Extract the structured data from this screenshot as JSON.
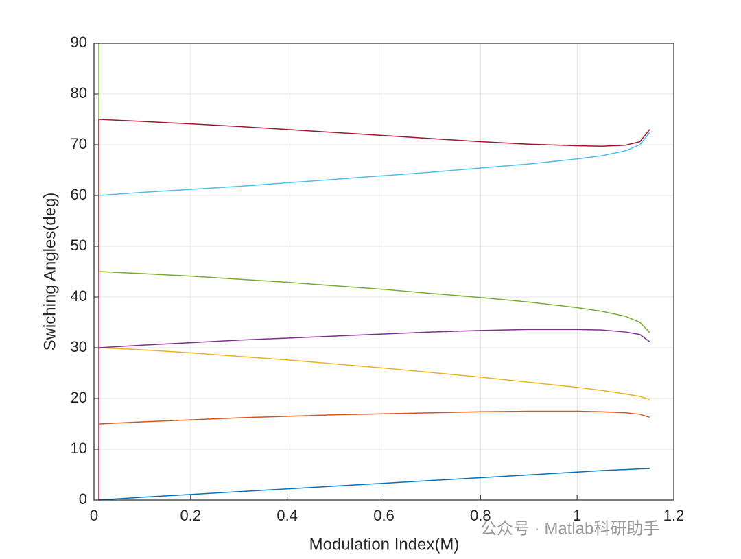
{
  "chart_data": {
    "type": "line",
    "xlabel": "Modulation Index(M)",
    "ylabel": "Swiching Angles(deg)",
    "watermark": "公众号 · Matlab科研助手",
    "xlim": [
      0,
      1.2
    ],
    "ylim": [
      0,
      90
    ],
    "xticks": [
      0,
      0.2,
      0.4,
      0.6,
      0.8,
      1,
      1.2
    ],
    "yticks": [
      0,
      10,
      20,
      30,
      40,
      50,
      60,
      70,
      80,
      90
    ],
    "grid": true,
    "x": [
      0.01,
      0.01,
      0.1,
      0.2,
      0.3,
      0.4,
      0.5,
      0.6,
      0.7,
      0.8,
      0.9,
      1.0,
      1.05,
      1.1,
      1.13,
      1.15
    ],
    "series": [
      {
        "color": "#0072bd",
        "values": [
          0,
          0,
          0.55,
          1.1,
          1.65,
          2.2,
          2.75,
          3.3,
          3.85,
          4.4,
          4.95,
          5.5,
          5.8,
          6.0,
          6.15,
          6.2
        ]
      },
      {
        "color": "#d95319",
        "values": [
          15,
          15,
          15.4,
          15.8,
          16.2,
          16.5,
          16.8,
          17.0,
          17.2,
          17.4,
          17.5,
          17.5,
          17.4,
          17.2,
          16.9,
          16.3
        ]
      },
      {
        "color": "#edb120",
        "values": [
          30,
          30,
          29.6,
          29.0,
          28.3,
          27.6,
          26.8,
          26.0,
          25.1,
          24.2,
          23.2,
          22.2,
          21.6,
          20.9,
          20.4,
          19.8
        ]
      },
      {
        "color": "#7e2f8e",
        "values": [
          30,
          30,
          30.5,
          31.0,
          31.5,
          31.9,
          32.3,
          32.7,
          33.1,
          33.4,
          33.6,
          33.6,
          33.5,
          33.1,
          32.6,
          31.2
        ]
      },
      {
        "color": "#77ac30",
        "values": [
          90,
          45,
          44.6,
          44.1,
          43.5,
          42.9,
          42.2,
          41.5,
          40.7,
          39.9,
          39.0,
          37.9,
          37.2,
          36.2,
          35.0,
          33.0
        ]
      },
      {
        "color": "#4dbeee",
        "values": [
          60,
          60,
          60.6,
          61.2,
          61.8,
          62.5,
          63.2,
          63.9,
          64.6,
          65.4,
          66.2,
          67.2,
          67.8,
          68.8,
          70.0,
          72.4
        ]
      },
      {
        "color": "#a2142f",
        "values": [
          0,
          75,
          74.6,
          74.1,
          73.6,
          73.0,
          72.4,
          71.8,
          71.2,
          70.6,
          70.1,
          69.8,
          69.7,
          69.9,
          70.6,
          73.0
        ]
      }
    ]
  }
}
